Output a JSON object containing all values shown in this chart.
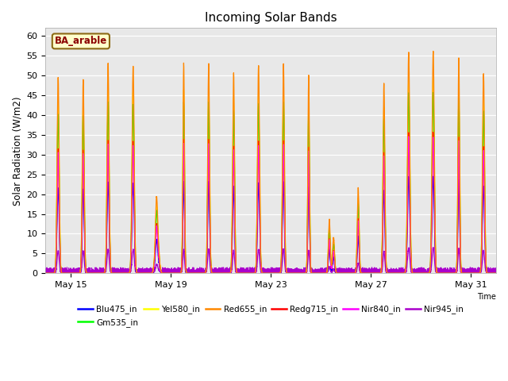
{
  "title": "Incoming Solar Bands",
  "xlabel": "Time",
  "ylabel": "Solar Radiation (W/m2)",
  "annotation": "BA_arable",
  "ylim": [
    0,
    62
  ],
  "plot_bg_color": "#e8e8e8",
  "series_colors": {
    "Blu475_in": "#0000ff",
    "Gm535_in": "#00ff00",
    "Yel580_in": "#ffff00",
    "Red655_in": "#ff8800",
    "Redg715_in": "#ff0000",
    "Nir840_in": "#ff00ff",
    "Nir945_in": "#aa00cc"
  },
  "lw": 0.9,
  "xtick_labels": [
    "May 15",
    "May 19",
    "May 23",
    "May 27",
    "May 31"
  ],
  "legend_order": [
    "Blu475_in",
    "Gm535_in",
    "Yel580_in",
    "Red655_in",
    "Redg715_in",
    "Nir840_in",
    "Nir945_in"
  ],
  "day_peaks_r655": [
    49.5,
    49.0,
    53.0,
    52.5,
    47.5,
    53.0,
    53.0,
    50.5,
    52.5,
    53.0,
    50.0,
    27.0,
    33.0,
    48.0,
    56.0,
    56.0,
    54.5,
    50.5
  ],
  "scale_factors": {
    "Blu475_in": 0.435,
    "Gm535_in": 0.815,
    "Yel580_in": 0.875,
    "Red655_in": 1.0,
    "Redg715_in": 0.635,
    "Nir840_in": 0.615,
    "Nir945_in": 0.115
  },
  "cloudy_days": {
    "4": 0.25,
    "11": 0.55,
    "12": 0.65
  },
  "peaks_per_day": 2,
  "pts_per_day": 288,
  "total_days": 18
}
